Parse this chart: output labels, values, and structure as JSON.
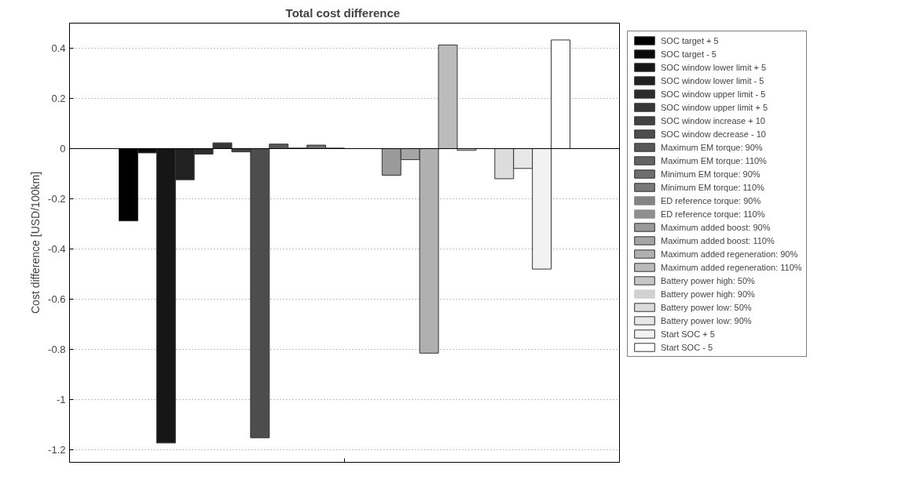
{
  "chart_data": {
    "type": "bar",
    "title": "Total cost  difference",
    "ylabel": "Cost difference [USD/100km]",
    "categories": [
      null
    ],
    "series": [
      {
        "name": "SOC target + 5",
        "color": "#000000",
        "values": [
          -0.288
        ]
      },
      {
        "name": "SOC target - 5",
        "color": "#0b0b0b",
        "values": [
          -0.017
        ]
      },
      {
        "name": "SOC window lower limit + 5",
        "color": "#161616",
        "values": [
          -1.173
        ]
      },
      {
        "name": "SOC window lower limit - 5",
        "color": "#212121",
        "values": [
          -0.124
        ]
      },
      {
        "name": "SOC window upper limit - 5",
        "color": "#2c2c2c",
        "values": [
          -0.022
        ]
      },
      {
        "name": "SOC window upper limit + 5",
        "color": "#373737",
        "values": [
          0.023
        ]
      },
      {
        "name": "SOC window increase + 10",
        "color": "#424242",
        "values": [
          -0.013
        ]
      },
      {
        "name": "SOC window decrease - 10",
        "color": "#4d4d4d",
        "values": [
          -1.152
        ]
      },
      {
        "name": "Maximum EM torque: 90%",
        "color": "#585858",
        "values": [
          0.018
        ]
      },
      {
        "name": "Maximum EM torque: 110%",
        "color": "#636363",
        "values": [
          0.002
        ]
      },
      {
        "name": "Minimum EM torque: 90%",
        "color": "#6e6e6e",
        "values": [
          0.014
        ]
      },
      {
        "name": "Minimum EM torque: 110%",
        "color": "#797979",
        "values": [
          0.002
        ]
      },
      {
        "name": "ED reference torque: 90%",
        "color": "#848484",
        "values": [
          0
        ]
      },
      {
        "name": "ED reference torque: 110%",
        "color": "#8f8f8f",
        "values": [
          0
        ]
      },
      {
        "name": "Maximum added boost: 90%",
        "color": "#9a9a9a",
        "values": [
          -0.106
        ]
      },
      {
        "name": "Maximum added boost: 110%",
        "color": "#a5a5a5",
        "values": [
          -0.044
        ]
      },
      {
        "name": "Maximum added regeneration: 90%",
        "color": "#b0b0b0",
        "values": [
          -0.815
        ]
      },
      {
        "name": "Maximum added regeneration: 110%",
        "color": "#bbbbbb",
        "values": [
          0.413
        ]
      },
      {
        "name": "Battery power high: 50%",
        "color": "#c6c6c6",
        "values": [
          -0.007
        ]
      },
      {
        "name": "Battery power high: 90%",
        "color": "#d1d1d1",
        "values": [
          0
        ]
      },
      {
        "name": "Battery power low: 50%",
        "color": "#dcdcdc",
        "values": [
          -0.12
        ]
      },
      {
        "name": "Battery power low: 90%",
        "color": "#e7e7e7",
        "values": [
          -0.079
        ]
      },
      {
        "name": "Start SOC + 5",
        "color": "#f2f2f2",
        "values": [
          -0.48
        ]
      },
      {
        "name": "Start SOC - 5",
        "color": "#ffffff",
        "values": [
          0.433
        ]
      }
    ],
    "ylim": [
      -1.25,
      0.5
    ],
    "yticks": [
      -1.2,
      -1,
      -0.8,
      -0.6,
      -0.4,
      -0.2,
      0,
      0.2,
      0.4
    ],
    "grid": "y",
    "legend": "right"
  }
}
